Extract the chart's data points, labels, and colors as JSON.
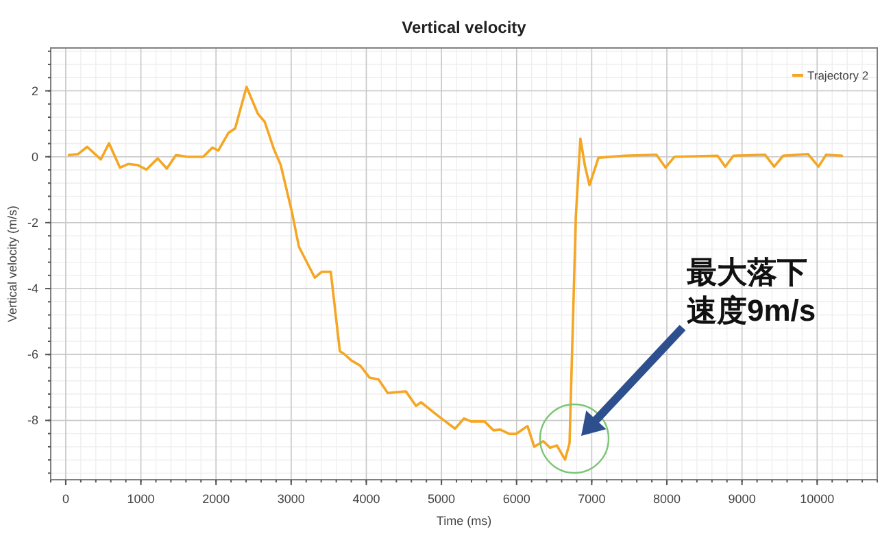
{
  "chart_data": {
    "type": "line",
    "title": "Vertical velocity",
    "xlabel": "Time (ms)",
    "ylabel": "Vertical velocity (m/s)",
    "xlim": [
      -200,
      10800
    ],
    "xticks": [
      0,
      1000,
      2000,
      3000,
      4000,
      5000,
      6000,
      7000,
      8000,
      9000,
      10000
    ],
    "ylim": [
      -9.8,
      3.3
    ],
    "yticks": [
      -8,
      -6,
      -4,
      -2,
      0,
      2
    ],
    "grid": true,
    "legend": "top right",
    "marker": "none",
    "line_style": "solid",
    "series": [
      {
        "name": "Trajectory 2",
        "color": "#f5a623",
        "x": [
          42,
          164,
          285,
          467,
          576,
          721,
          830,
          952,
          1073,
          1224,
          1345,
          1467,
          1618,
          1830,
          1952,
          2030,
          2164,
          2255,
          2406,
          2558,
          2648,
          2770,
          2861,
          3012,
          3103,
          3315,
          3406,
          3527,
          3648,
          3709,
          3800,
          3921,
          4042,
          4164,
          4285,
          4527,
          4661,
          4729,
          4970,
          5181,
          5301,
          5392,
          5572,
          5693,
          5783,
          5904,
          5994,
          6145,
          6235,
          6355,
          6446,
          6536,
          6645,
          6705,
          6789,
          6849,
          6910,
          6970,
          7090,
          7440,
          7861,
          7982,
          8102,
          8675,
          8777,
          8886,
          9307,
          9428,
          9548,
          9880,
          10018,
          10120,
          10331
        ],
        "values": [
          0.05,
          0.08,
          0.3,
          -0.08,
          0.41,
          -0.33,
          -0.22,
          -0.25,
          -0.39,
          -0.05,
          -0.36,
          0.05,
          0,
          0,
          0.28,
          0.19,
          0.72,
          0.86,
          2.12,
          1.3,
          1.06,
          0.23,
          -0.25,
          -1.7,
          -2.73,
          -3.67,
          -3.49,
          -3.49,
          -5.9,
          -5.99,
          -6.18,
          -6.34,
          -6.7,
          -6.76,
          -7.17,
          -7.12,
          -7.56,
          -7.45,
          -7.89,
          -8.25,
          -7.94,
          -8.03,
          -8.03,
          -8.3,
          -8.28,
          -8.41,
          -8.41,
          -8.17,
          -8.8,
          -8.63,
          -8.83,
          -8.76,
          -9.19,
          -8.69,
          -1.79,
          0.55,
          -0.28,
          -0.86,
          -0.03,
          0.03,
          0.06,
          -0.33,
          0,
          0.03,
          -0.3,
          0.03,
          0.06,
          -0.3,
          0.03,
          0.08,
          -0.3,
          0.06,
          0.03
        ]
      }
    ],
    "annotations": [
      "最大落下速度9m/s"
    ]
  }
}
